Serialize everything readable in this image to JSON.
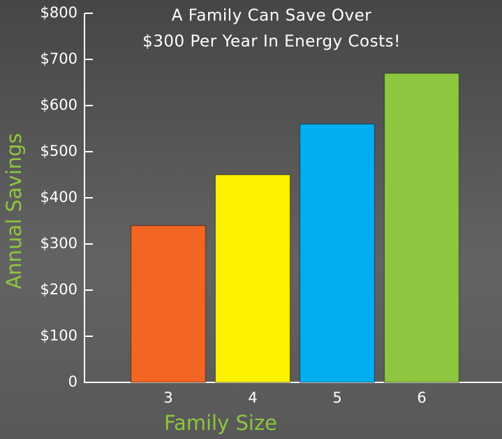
{
  "chart_data": {
    "type": "bar",
    "title": [
      "A Family Can Save Over",
      "$300 Per Year In Energy Costs!"
    ],
    "x_label": "Family Size",
    "y_label": "Annual Savings",
    "categories": [
      "3",
      "4",
      "5",
      "6"
    ],
    "values": [
      340,
      450,
      560,
      670
    ],
    "colors": [
      "#f26522",
      "#fff200",
      "#00aeef",
      "#8dc63f"
    ],
    "ylim": [
      0,
      800
    ],
    "yticks": [
      0,
      {
        "value": 100,
        "label": "$100"
      },
      {
        "value": 200,
        "label": "$200"
      },
      {
        "value": 300,
        "label": "$300"
      },
      {
        "value": 400,
        "label": "$400"
      },
      {
        "value": 500,
        "label": "$500"
      },
      {
        "value": 600,
        "label": "$600"
      },
      {
        "value": 700,
        "label": "$700"
      },
      {
        "value": 800,
        "label": "$800"
      }
    ],
    "grid": false
  }
}
